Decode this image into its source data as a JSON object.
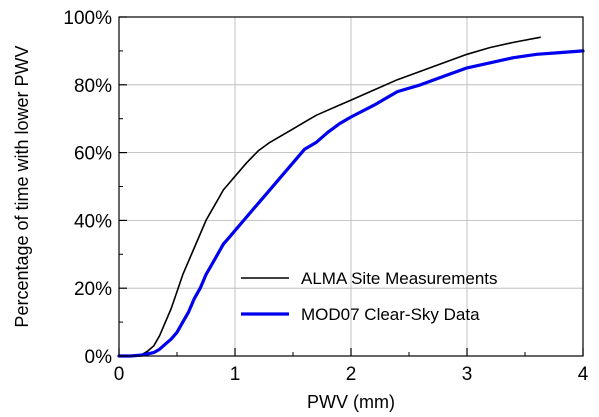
{
  "chart_data": {
    "type": "line",
    "title": "",
    "xlabel": "PWV (mm)",
    "ylabel": "Percentage of time with lower PWV",
    "xlim": [
      0,
      4
    ],
    "ylim": [
      0,
      100
    ],
    "x_ticks": [
      0,
      1,
      2,
      3,
      4
    ],
    "x_tick_labels": [
      "0",
      "1",
      "2",
      "3",
      "4"
    ],
    "y_ticks": [
      0,
      20,
      40,
      60,
      80,
      100
    ],
    "y_tick_labels": [
      "0%",
      "20%",
      "40%",
      "60%",
      "80%",
      "100%"
    ],
    "grid": true,
    "legend_position": "bottom-right",
    "series": [
      {
        "name": "ALMA Site Measurements",
        "color": "#000000",
        "x": [
          0,
          0.1,
          0.2,
          0.25,
          0.3,
          0.35,
          0.4,
          0.45,
          0.5,
          0.55,
          0.6,
          0.65,
          0.7,
          0.75,
          0.8,
          0.85,
          0.9,
          0.95,
          1.0,
          1.1,
          1.2,
          1.3,
          1.4,
          1.5,
          1.6,
          1.7,
          1.8,
          1.9,
          2.0,
          2.2,
          2.4,
          2.6,
          2.8,
          3.0,
          3.2,
          3.4,
          3.63
        ],
        "y": [
          0,
          0,
          0.5,
          1.5,
          3,
          6,
          10,
          14,
          19,
          24,
          28,
          32,
          36,
          40,
          43,
          46,
          49,
          51,
          53,
          57,
          60.5,
          63,
          65,
          67,
          69,
          71,
          72.5,
          74,
          75.5,
          78.5,
          81.5,
          84,
          86.5,
          89,
          91,
          92.5,
          94
        ]
      },
      {
        "name": "MOD07 Clear-Sky Data",
        "color": "#0000ee",
        "x": [
          0,
          0.1,
          0.2,
          0.3,
          0.35,
          0.4,
          0.45,
          0.5,
          0.55,
          0.6,
          0.65,
          0.7,
          0.75,
          0.8,
          0.85,
          0.9,
          0.95,
          1.0,
          1.1,
          1.2,
          1.3,
          1.4,
          1.5,
          1.6,
          1.7,
          1.8,
          1.9,
          2.0,
          2.2,
          2.4,
          2.6,
          2.8,
          3.0,
          3.2,
          3.4,
          3.6,
          3.8,
          4.0
        ],
        "y": [
          0,
          0,
          0.3,
          1,
          2,
          3.5,
          5,
          7,
          10,
          13,
          17,
          20,
          24,
          27,
          30,
          33,
          35,
          37,
          41,
          45,
          49,
          53,
          57,
          61,
          63,
          66,
          68.5,
          70.5,
          74,
          78,
          80,
          82.5,
          85,
          86.5,
          88,
          89,
          89.5,
          90
        ]
      }
    ]
  }
}
